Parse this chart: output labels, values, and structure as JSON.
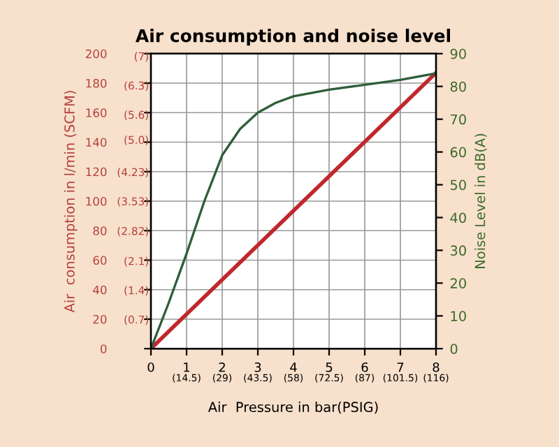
{
  "chart_data": {
    "type": "line",
    "title": "Air consumption and noise level",
    "xlabel": "Air  Pressure in bar(PSIG)",
    "ylabel": "Air  consumption in l/min (SCFM)",
    "y2label": "Noise Level in dB(A)",
    "series": [
      {
        "color": "#c0282d",
        "x": [
          0,
          8
        ],
        "values": [
          0,
          187
        ]
      },
      {
        "color": "#2e5e3a",
        "axis": "y2",
        "x": [
          0,
          0.5,
          1,
          1.5,
          2,
          2.5,
          3,
          3.5,
          4,
          5,
          6,
          7,
          8
        ],
        "values": [
          0,
          14,
          29,
          45,
          59,
          67,
          72,
          75,
          77,
          79,
          80.5,
          82,
          84
        ]
      }
    ],
    "xlim": [
      0,
      8
    ],
    "xticks": [
      0,
      1,
      2,
      3,
      4,
      5,
      6,
      7,
      8
    ],
    "x2lim": [
      0,
      116
    ],
    "x2ticks": [
      {
        "value": 14.5,
        "label": "(14.5)"
      },
      {
        "value": 29,
        "label": "(29)"
      },
      {
        "value": 43.5,
        "label": "(43.5)"
      },
      {
        "value": 58,
        "label": "(58)"
      },
      {
        "value": 72.5,
        "label": "(72.5)"
      },
      {
        "value": 87,
        "label": "(87)"
      },
      {
        "value": 101.5,
        "label": "(101.5)"
      },
      {
        "value": 116,
        "label": "(116)"
      }
    ],
    "ylim": [
      0,
      200
    ],
    "yticks": [
      0,
      20,
      40,
      60,
      80,
      100,
      120,
      140,
      160,
      180,
      200
    ],
    "y3lim": [
      0,
      7.06
    ],
    "y3ticks": [
      {
        "value": 0.7,
        "label": "(0.7)"
      },
      {
        "value": 1.4,
        "label": "(1.4)"
      },
      {
        "value": 2.1,
        "label": "(2.1)"
      },
      {
        "value": 2.82,
        "label": "(2.82)"
      },
      {
        "value": 3.53,
        "label": "(3.53)"
      },
      {
        "value": 4.23,
        "label": "(4.23)"
      },
      {
        "value": 5.0,
        "label": "(5.0)"
      },
      {
        "value": 5.6,
        "label": "(5.6)"
      },
      {
        "value": 6.3,
        "label": "(6.3)"
      },
      {
        "value": 7,
        "label": "(7)"
      }
    ],
    "y2lim": [
      0,
      90
    ],
    "y2ticks": [
      0,
      10,
      20,
      30,
      40,
      50,
      60,
      70,
      80,
      90
    ],
    "grid": true,
    "legend": false
  }
}
